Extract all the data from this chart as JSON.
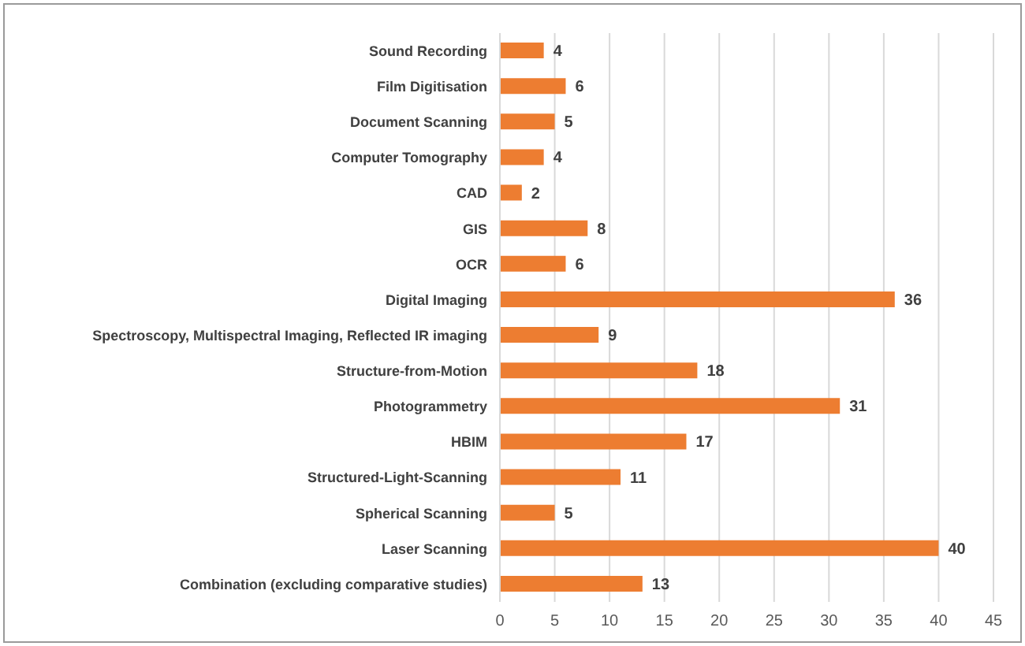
{
  "chart_data": {
    "type": "bar",
    "orientation": "horizontal",
    "categories": [
      "Sound Recording",
      "Film Digitisation",
      "Document Scanning",
      "Computer Tomography",
      "CAD",
      "GIS",
      "OCR",
      "Digital Imaging",
      "Spectroscopy, Multispectral Imaging, Reflected IR imaging",
      "Structure-from-Motion",
      "Photogrammetry",
      "HBIM",
      "Structured-Light-Scanning",
      "Spherical Scanning",
      "Laser Scanning",
      "Combination (excluding comparative studies)"
    ],
    "values": [
      4,
      6,
      5,
      4,
      2,
      8,
      6,
      36,
      9,
      18,
      31,
      17,
      11,
      5,
      40,
      13
    ],
    "color": "#ed7d31",
    "xlim": [
      0,
      45
    ],
    "xticks": [
      0,
      5,
      10,
      15,
      20,
      25,
      30,
      35,
      40,
      45
    ],
    "grid": "x",
    "data_labels": true
  }
}
